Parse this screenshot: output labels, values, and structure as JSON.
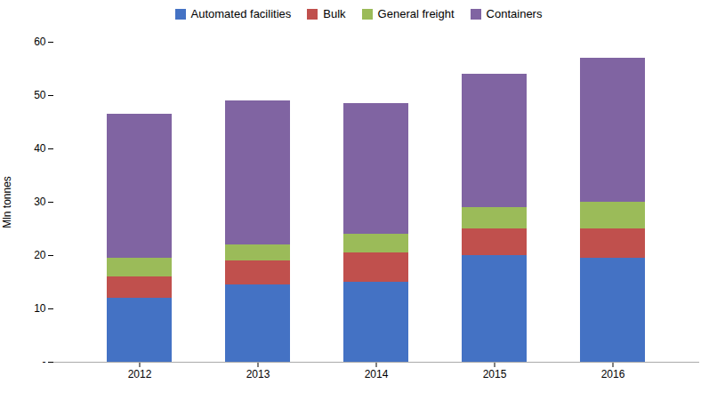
{
  "chart_data": {
    "type": "bar",
    "stacked": true,
    "categories": [
      "2012",
      "2013",
      "2014",
      "2015",
      "2016"
    ],
    "series": [
      {
        "name": "Automated facilities",
        "color": "#4472C4",
        "values": [
          12.0,
          14.5,
          15.0,
          20.0,
          19.5
        ]
      },
      {
        "name": "Bulk",
        "color": "#C0504D",
        "values": [
          4.0,
          4.5,
          5.5,
          5.0,
          5.5
        ]
      },
      {
        "name": "General freight",
        "color": "#9BBB59",
        "values": [
          3.5,
          3.0,
          3.5,
          4.0,
          5.0
        ]
      },
      {
        "name": "Containers",
        "color": "#8064A2",
        "values": [
          27.0,
          27.0,
          24.5,
          25.0,
          27.0
        ]
      }
    ],
    "ylabel": "Mln tonnes",
    "ylim": [
      0,
      60
    ],
    "yticks": [
      {
        "value": 0,
        "label": "-"
      },
      10,
      20,
      30,
      40,
      50,
      60
    ],
    "grid": false,
    "legend": "top"
  }
}
